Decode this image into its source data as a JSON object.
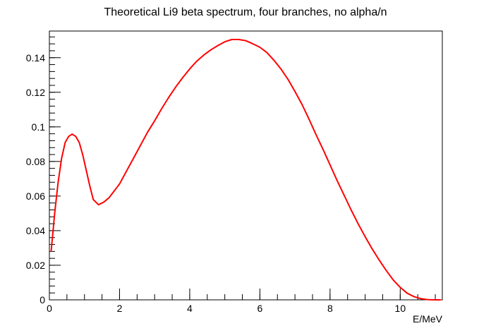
{
  "chart_data": {
    "type": "line",
    "title": "Theoretical Li9 beta spectrum, four branches, no alpha/n",
    "xlabel": "E/MeV",
    "ylabel": "",
    "xlim": [
      0,
      11.2
    ],
    "ylim": [
      0,
      0.1554
    ],
    "x_ticks": [
      0,
      2,
      4,
      6,
      8,
      10
    ],
    "x_tick_labels": [
      "0",
      "2",
      "4",
      "6",
      "8",
      "10"
    ],
    "y_ticks": [
      0,
      0.02,
      0.04,
      0.06,
      0.08,
      0.1,
      0.12,
      0.14
    ],
    "y_tick_labels": [
      "0",
      "0.02",
      "0.04",
      "0.06",
      "0.08",
      "0.1",
      "0.12",
      "0.14"
    ],
    "grid": false,
    "legend": "none",
    "series": [
      {
        "color": "#ff0000",
        "x": [
          0.05,
          0.15,
          0.25,
          0.35,
          0.45,
          0.55,
          0.65,
          0.75,
          0.85,
          0.95,
          1.05,
          1.15,
          1.25,
          1.4,
          1.55,
          1.7,
          1.85,
          2.0,
          2.2,
          2.4,
          2.6,
          2.8,
          3.0,
          3.2,
          3.4,
          3.6,
          3.8,
          4.0,
          4.2,
          4.4,
          4.6,
          4.8,
          5.0,
          5.2,
          5.4,
          5.6,
          5.8,
          6.0,
          6.2,
          6.4,
          6.6,
          6.8,
          7.0,
          7.2,
          7.4,
          7.6,
          7.8,
          8.0,
          8.2,
          8.4,
          8.6,
          8.8,
          9.0,
          9.2,
          9.4,
          9.6,
          9.8,
          10.0,
          10.2,
          10.4,
          10.6,
          10.8,
          11.0,
          11.15
        ],
        "y": [
          0.028,
          0.05,
          0.068,
          0.082,
          0.091,
          0.0945,
          0.0958,
          0.0945,
          0.091,
          0.084,
          0.075,
          0.066,
          0.058,
          0.055,
          0.0565,
          0.059,
          0.063,
          0.067,
          0.0745,
          0.082,
          0.0895,
          0.097,
          0.1035,
          0.1105,
          0.117,
          0.123,
          0.1285,
          0.1335,
          0.138,
          0.1415,
          0.1445,
          0.147,
          0.1492,
          0.1505,
          0.1505,
          0.1498,
          0.148,
          0.146,
          0.143,
          0.1385,
          0.1335,
          0.1275,
          0.1205,
          0.113,
          0.1045,
          0.0955,
          0.087,
          0.078,
          0.069,
          0.0605,
          0.052,
          0.044,
          0.0365,
          0.0295,
          0.023,
          0.017,
          0.0115,
          0.0072,
          0.0038,
          0.0018,
          0.0006,
          0.0001,
          0.0,
          0.0
        ]
      }
    ]
  }
}
